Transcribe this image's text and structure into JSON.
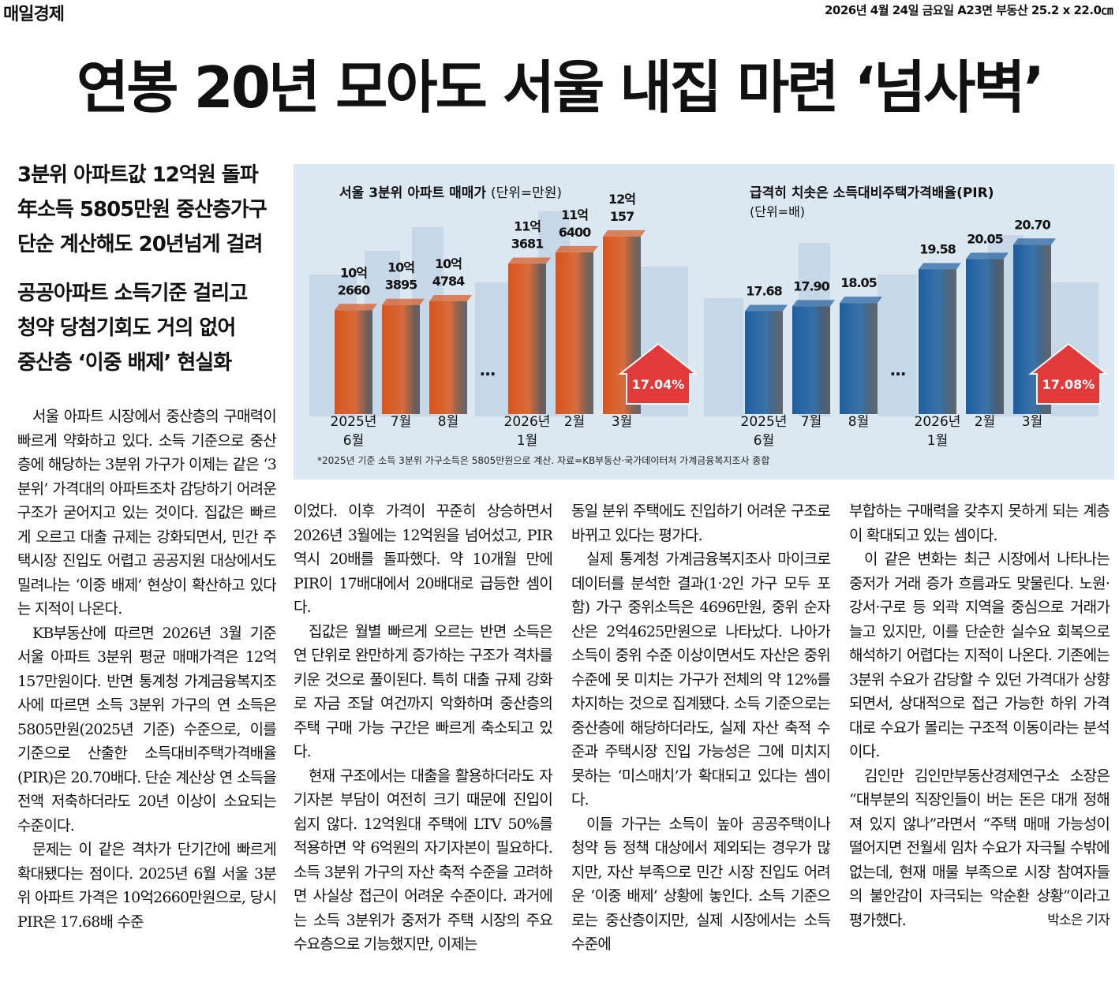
{
  "header": {
    "paper": "매일경제",
    "dateline": "2026년 4월 24일 금요일 A23면 부동산 25.2 x 22.0㎝"
  },
  "headline": "연봉 20년 모아도 서울 내집 마련 ‘넘사벽’",
  "subheads": [
    [
      "3분위 아파트값 12억원 돌파",
      "年소득 5805만원 중산층가구",
      "단순 계산해도 20년넘게 걸려"
    ],
    [
      "공공아파트 소득기준 걸리고",
      "청약 당첨기회도 거의 없어",
      "중산층 ‘이중 배제’ 현실화"
    ]
  ],
  "chart_footnote": "*2025년 기준 소득 3분위 가구소득은 5805만원으로 계산. 자료=KB부동산·국가데이터처 가계금융복지조사 종합",
  "chart_data": [
    {
      "type": "bar",
      "title": "서울 3분위 아파트 매매가",
      "unit_label": "(단위=만원)",
      "categories": [
        "2025년 6월",
        "7월",
        "8월",
        "2026년 1월",
        "2월",
        "3월"
      ],
      "values": [
        102660,
        103895,
        104784,
        113681,
        116400,
        120157
      ],
      "value_labels": [
        "10억 2660",
        "10억 3895",
        "10억 4784",
        "11억 3681",
        "11억 6400",
        "12억 157"
      ],
      "ylim": [
        78000,
        125000
      ],
      "color": "#d8561c",
      "ellipsis": "…",
      "change_label": "17.04%"
    },
    {
      "type": "bar",
      "title": "급격히 치솟은 소득대비주택가격배율(PIR)",
      "unit_label": "(단위=배)",
      "categories": [
        "2025년 6월",
        "7월",
        "8월",
        "2026년 1월",
        "2월",
        "3월"
      ],
      "values": [
        17.68,
        17.9,
        18.05,
        19.58,
        20.05,
        20.7
      ],
      "value_labels": [
        "17.68",
        "17.90",
        "18.05",
        "19.58",
        "20.05",
        "20.70"
      ],
      "ylim": [
        13,
        22
      ],
      "color": "#1e5e9e",
      "ellipsis": "…",
      "change_label": "17.08%"
    }
  ],
  "body": {
    "columns": [
      [
        "서울 아파트 시장에서 중산층의 구매력이 빠르게 약화하고 있다. 소득 기준으로 중산층에 해당하는 3분위 가구가 이제는 같은 ‘3분위’ 가격대의 아파트조차 감당하기 어려운 구조가 굳어지고 있는 것이다. 집값은 빠르게 오르고 대출 규제는 강화되면서, 민간 주택시장 진입도 어렵고 공공지원 대상에서도 밀려나는 ‘이중 배제’ 현상이 확산하고 있다는 지적이 나온다.",
        "KB부동산에 따르면 2026년 3월 기준 서울 아파트 3분위 평균 매매가격은 12억157만원이다. 반면 통계청 가계금융복지조사에 따르면 소득 3분위 가구의 연 소득은 5805만원(2025년 기준) 수준으로, 이를 기준으로 산출한 소득대비주택가격배율(PIR)은 20.70배다. 단순 계산상 연 소득을 전액 저축하더라도 20년 이상이 소요되는 수준이다.",
        "문제는 이 같은 격차가 단기간에 빠르게 확대됐다는 점이다. 2025년 6월 서울 3분위 아파트 가격은 10억2660만원으로, 당시 PIR은 17.68배 수준"
      ],
      [
        "이었다. 이후 가격이 꾸준히 상승하면서 2026년 3월에는 12억원을 넘어섰고, PIR 역시 20배를 돌파했다. 약 10개월 만에 PIR이 17배대에서 20배대로 급등한 셈이다.",
        "집값은 월별 빠르게 오르는 반면 소득은 연 단위로 완만하게 증가하는 구조가 격차를 키운 것으로 풀이된다. 특히 대출 규제 강화로 자금 조달 여건까지 악화하며 중산층의 주택 구매 가능 구간은 빠르게 축소되고 있다.",
        "현재 구조에서는 대출을 활용하더라도 자기자본 부담이 여전히 크기 때문에 진입이 쉽지 않다. 12억원대 주택에 LTV 50%를 적용하면 약 6억원의 자기자본이 필요하다. 소득 3분위 가구의 자산 축적 수준을 고려하면 사실상 접근이 어려운 수준이다. 과거에는 소득 3분위가 중저가 주택 시장의 주요 수요층으로 기능했지만, 이제는"
      ],
      [
        "동일 분위 주택에도 진입하기 어려운 구조로 바뀌고 있다는 평가다.",
        "실제 통계청 가계금융복지조사 마이크로데이터를 분석한 결과(1·2인 가구 모두 포함) 가구 중위소득은 4696만원, 중위 순자산은 2억4625만원으로 나타났다. 나아가 소득이 중위 수준 이상이면서도 자산은 중위 수준에 못 미치는 가구가 전체의 약 12%를 차지하는 것으로 집계됐다. 소득 기준으로는 중산층에 해당하더라도, 실제 자산 축적 수준과 주택시장 진입 가능성은 그에 미치지 못하는 ‘미스매치’가 확대되고 있다는 셈이다.",
        "이들 가구는 소득이 높아 공공주택이나 청약 등 정책 대상에서 제외되는 경우가 많지만, 자산 부족으로 민간 시장 진입도 어려운 ‘이중 배제’ 상황에 놓인다. 소득 기준으로는 중산층이지만, 실제 시장에서는 소득 수준에"
      ],
      [
        "부합하는 구매력을 갖추지 못하게 되는 계층이 확대되고 있는 셈이다.",
        "이 같은 변화는 최근 시장에서 나타나는 중저가 거래 증가 흐름과도 맞물린다. 노원·강서·구로 등 외곽 지역을 중심으로 거래가 늘고 있지만, 이를 단순한 실수요 회복으로 해석하기 어렵다는 지적이 나온다. 기존에는 3분위 수요가 감당할 수 있던 가격대가 상향되면서, 상대적으로 접근 가능한 하위 가격대로 수요가 몰리는 구조적 이동이라는 분석이다.",
        "김인만 김인만부동산경제연구소 소장은 “대부분의 직장인들이 버는 돈은 대개 정해져 있지 않나”라면서 “주택 매매 가능성이 떨어지면 전월세 임차 수요가 자극될 수밖에 없는데, 현재 매물 부족으로 시장 참여자들의 불안감이 자극되는 악순환 상황”이라고 평가했다."
      ]
    ]
  },
  "byline": "박소은 기자"
}
